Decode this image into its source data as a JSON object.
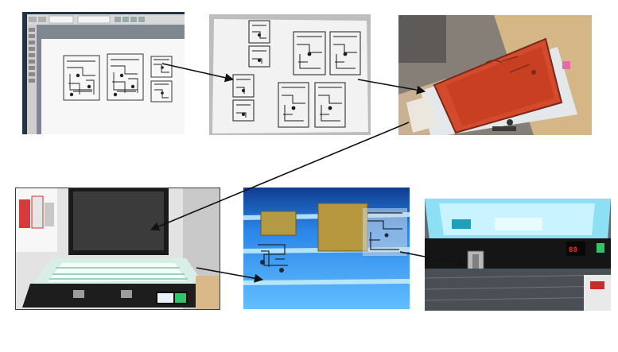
{
  "scene": {
    "colors": {
      "background": "#ffffff",
      "arrow": "#111111",
      "uv_glow": "#bfeaff",
      "frame_red": "#d4492a",
      "wood": "#d9b98a",
      "display_red": "#ff2a2a"
    },
    "photos": [
      {
        "name": "photo-pcb-design-screen",
        "subject": "layout-screen"
      },
      {
        "name": "photo-printed-transparency",
        "subject": "printed-sheet"
      },
      {
        "name": "photo-screen-frame",
        "subject": "red-frame"
      },
      {
        "name": "photo-uv-box-open",
        "subject": "uv-box"
      },
      {
        "name": "photo-uv-exposure-closeup",
        "subject": "uv-glass"
      },
      {
        "name": "photo-uv-box-lid",
        "subject": "uv-lid"
      }
    ],
    "arrows": [
      {
        "name": "arrow-screen-to-sheet",
        "from": "photo-pcb-design-screen",
        "to": "photo-printed-transparency"
      },
      {
        "name": "arrow-sheet-to-frame",
        "from": "photo-printed-transparency",
        "to": "photo-screen-frame"
      },
      {
        "name": "arrow-frame-to-uv-box",
        "from": "photo-screen-frame",
        "to": "photo-uv-box-open"
      },
      {
        "name": "arrow-uv-box-to-glass",
        "from": "photo-uv-box-open",
        "to": "photo-uv-exposure-closeup"
      },
      {
        "name": "arrow-glass-to-lid-latch",
        "from": "photo-uv-exposure-closeup",
        "to": "photo-uv-box-lid"
      }
    ]
  }
}
